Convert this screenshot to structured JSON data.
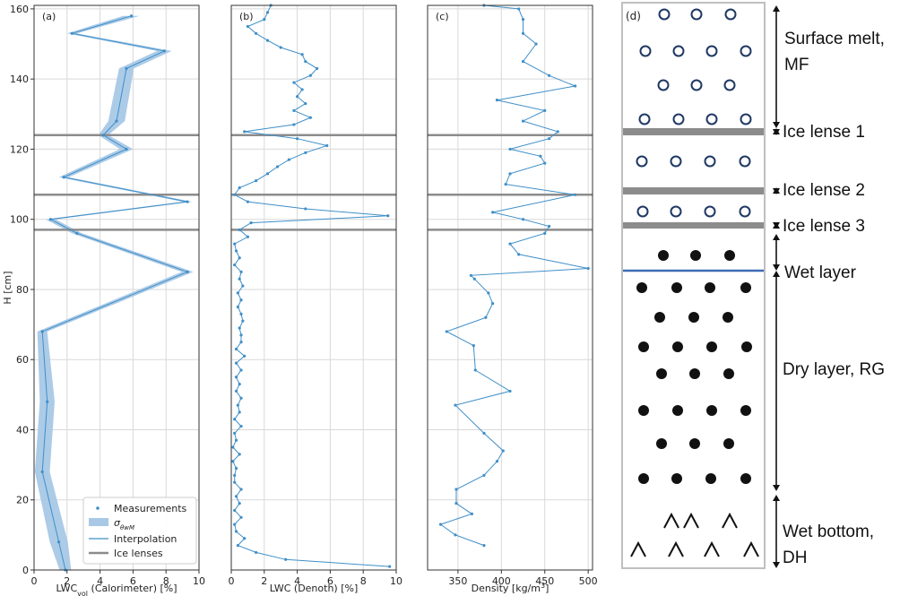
{
  "chart_data": [
    {
      "panel": "(a)",
      "type": "line",
      "xlabel": "LWC",
      "xlabel_sub": "vol",
      "xlabel_rest": " (Calorimeter) [%]",
      "ylabel": "H [cm]",
      "xlim": [
        0,
        10
      ],
      "ylim": [
        0,
        161
      ],
      "xticks": [
        0,
        2,
        4,
        6,
        8,
        10
      ],
      "yticks": [
        0,
        20,
        40,
        60,
        80,
        100,
        120,
        140,
        160
      ],
      "grid": true,
      "ice_lenses": [
        124,
        107,
        97
      ],
      "series": [
        {
          "name": "Measurements",
          "points": [
            [
              1.9,
              0
            ],
            [
              1.5,
              8
            ],
            [
              0.5,
              28
            ],
            [
              0.8,
              48
            ],
            [
              0.5,
              68
            ],
            [
              9.3,
              85
            ],
            [
              2.6,
              96
            ],
            [
              1.0,
              100
            ],
            [
              9.3,
              105
            ],
            [
              1.8,
              112
            ],
            [
              5.6,
              120
            ],
            [
              4.2,
              124
            ],
            [
              5.0,
              128
            ],
            [
              5.6,
              143
            ],
            [
              7.9,
              148
            ],
            [
              2.3,
              153
            ],
            [
              5.9,
              158
            ]
          ]
        }
      ],
      "uncertainty_band_name": "σ_θwM",
      "band_halfwidth": [
        0.35,
        0.55,
        0.45,
        0.45,
        0.3,
        0.35,
        0.3,
        0.3,
        0.3,
        0.3,
        0.4,
        0.3,
        0.5,
        0.45,
        0.45,
        0.3,
        0.5
      ],
      "legend": {
        "position": "lower-right",
        "entries": [
          "Measurements",
          "σ",
          "Interpolation",
          "Ice lenses"
        ]
      }
    },
    {
      "panel": "(b)",
      "type": "line",
      "xlabel": "LWC (Denoth) [%]",
      "xlim": [
        0,
        10
      ],
      "ylim": [
        0,
        161
      ],
      "xticks": [
        0,
        2,
        4,
        6,
        8,
        10
      ],
      "grid": true,
      "ice_lenses": [
        124,
        107,
        97
      ],
      "series": [
        {
          "name": "Interpolation",
          "points": [
            [
              9.6,
              1
            ],
            [
              3.3,
              3
            ],
            [
              1.5,
              5
            ],
            [
              0.4,
              7
            ],
            [
              0.8,
              9
            ],
            [
              0.3,
              11
            ],
            [
              0.2,
              13
            ],
            [
              0.6,
              15
            ],
            [
              0.2,
              17
            ],
            [
              0.5,
              19
            ],
            [
              0.3,
              21
            ],
            [
              0.6,
              23
            ],
            [
              0.2,
              25
            ],
            [
              0.2,
              27
            ],
            [
              0.3,
              29
            ],
            [
              0.1,
              31
            ],
            [
              0.5,
              33
            ],
            [
              0.1,
              35
            ],
            [
              0.3,
              37
            ],
            [
              0.2,
              39
            ],
            [
              0.6,
              41
            ],
            [
              0.2,
              43
            ],
            [
              0.5,
              45
            ],
            [
              0.4,
              47
            ],
            [
              0.6,
              49
            ],
            [
              0.3,
              51
            ],
            [
              0.5,
              53
            ],
            [
              0.3,
              55
            ],
            [
              0.6,
              57
            ],
            [
              0.3,
              59
            ],
            [
              0.8,
              61
            ],
            [
              0.3,
              63
            ],
            [
              0.6,
              65
            ],
            [
              0.6,
              67
            ],
            [
              0.5,
              69
            ],
            [
              0.7,
              71
            ],
            [
              0.6,
              73
            ],
            [
              0.4,
              75
            ],
            [
              0.6,
              77
            ],
            [
              0.4,
              79
            ],
            [
              0.7,
              81
            ],
            [
              0.5,
              83
            ],
            [
              0.6,
              85
            ],
            [
              0.2,
              87
            ],
            [
              0.5,
              89
            ],
            [
              0.3,
              91
            ],
            [
              0.2,
              93
            ],
            [
              1.0,
              95
            ],
            [
              0.5,
              97
            ],
            [
              1.2,
              99
            ],
            [
              9.5,
              101
            ],
            [
              4.5,
              103
            ],
            [
              1.0,
              105
            ],
            [
              0.2,
              107
            ],
            [
              0.5,
              109
            ],
            [
              1.5,
              111
            ],
            [
              2.2,
              113
            ],
            [
              2.8,
              115
            ],
            [
              3.5,
              117
            ],
            [
              4.5,
              119
            ],
            [
              5.8,
              121
            ],
            [
              4.0,
              123
            ],
            [
              0.8,
              125
            ],
            [
              3.8,
              127
            ],
            [
              4.8,
              129
            ],
            [
              3.8,
              131
            ],
            [
              4.5,
              133
            ],
            [
              4.0,
              135
            ],
            [
              4.3,
              137
            ],
            [
              3.8,
              139
            ],
            [
              4.8,
              141
            ],
            [
              5.2,
              143
            ],
            [
              4.5,
              145
            ],
            [
              4.3,
              147
            ],
            [
              3.0,
              149
            ],
            [
              2.2,
              151
            ],
            [
              1.5,
              153
            ],
            [
              1.0,
              155
            ],
            [
              2.0,
              157
            ],
            [
              2.2,
              159
            ],
            [
              2.4,
              161
            ]
          ]
        }
      ]
    },
    {
      "panel": "(c)",
      "type": "line",
      "xlabel": "Density [kg/m",
      "xlabel_sup": "3",
      "xlabel_end": "]",
      "xlim": [
        315,
        505
      ],
      "ylim": [
        0,
        161
      ],
      "xticks": [
        350,
        400,
        450,
        500
      ],
      "grid": true,
      "ice_lenses": [
        124,
        107,
        97
      ],
      "series": [
        {
          "name": "Interpolation",
          "points": [
            [
              380,
              7
            ],
            [
              347,
              10
            ],
            [
              330,
              13
            ],
            [
              366,
              16
            ],
            [
              348,
              19
            ],
            [
              348,
              23
            ],
            [
              380,
              27
            ],
            [
              395,
              31
            ],
            [
              402,
              34
            ],
            [
              380,
              39
            ],
            [
              347,
              47
            ],
            [
              410,
              51
            ],
            [
              370,
              57
            ],
            [
              368,
              64
            ],
            [
              337,
              68
            ],
            [
              382,
              72
            ],
            [
              390,
              76
            ],
            [
              385,
              79
            ],
            [
              369,
              83
            ],
            [
              365,
              84
            ],
            [
              500,
              86
            ],
            [
              420,
              90
            ],
            [
              410,
              93
            ],
            [
              450,
              96
            ],
            [
              455,
              98
            ],
            [
              425,
              100
            ],
            [
              390,
              102
            ],
            [
              485,
              107
            ],
            [
              405,
              110
            ],
            [
              410,
              113
            ],
            [
              450,
              116
            ],
            [
              445,
              118
            ],
            [
              410,
              120
            ],
            [
              455,
              123
            ],
            [
              465,
              125
            ],
            [
              425,
              128
            ],
            [
              450,
              131
            ],
            [
              395,
              134
            ],
            [
              485,
              138
            ],
            [
              455,
              141
            ],
            [
              425,
              145
            ],
            [
              440,
              150
            ],
            [
              425,
              153
            ],
            [
              425,
              157
            ],
            [
              420,
              160
            ],
            [
              380,
              161
            ]
          ]
        }
      ]
    }
  ],
  "diagram": {
    "panel_label": "(d)",
    "labels": {
      "surface_line1": "Surface melt,",
      "surface_line2": "MF",
      "ice1": "Ice lense 1",
      "ice2": "Ice lense 2",
      "ice3": "Ice lense 3",
      "wet_layer": "Wet layer",
      "dry_layer": "Dry layer, RG",
      "wet_bottom_line1": "Wet bottom,",
      "wet_bottom_line2": "DH"
    },
    "colors": {
      "ice_lens": "#8c8c8c",
      "wet_layer_line": "#3d6bb3",
      "open_circle_stroke": "#1f3864",
      "filled_circle": "#111111"
    }
  },
  "colors": {
    "series": "#3f8fc8",
    "band": "#a8c8e6",
    "ice_lines": "#8c8c8c",
    "grid": "#d9d9d9"
  }
}
